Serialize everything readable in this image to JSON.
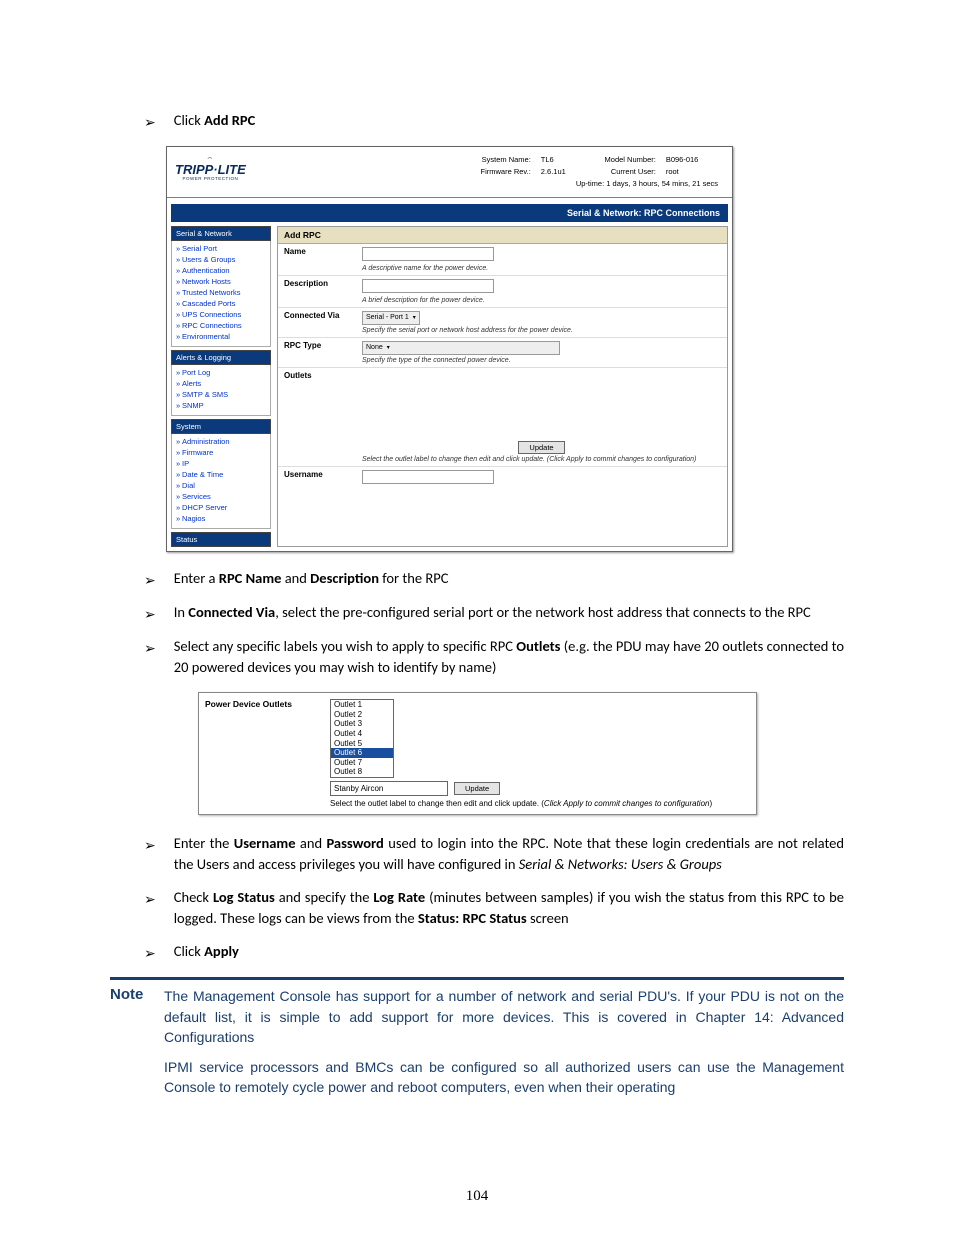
{
  "instructions_top": {
    "i1_a": "Click ",
    "i1_b": "Add RPC"
  },
  "shot1": {
    "logo": "TRIPP·LITE",
    "logo_sub": "POWER PROTECTION",
    "sys": {
      "name_lbl": "System Name:",
      "name_val": "TL6",
      "fw_lbl": "Firmware Rev.:",
      "fw_val": "2.6.1u1",
      "model_lbl": "Model Number:",
      "model_val": "B096-016",
      "user_lbl": "Current User:",
      "user_val": "root",
      "uptime_lbl": "Up-time:",
      "uptime_val": "1 days, 3 hours, 54 mins, 21 secs"
    },
    "title_bar": "Serial & Network: RPC Connections",
    "sidebar": {
      "g1_head": "Serial & Network",
      "g1": [
        "Serial Port",
        "Users & Groups",
        "Authentication",
        "Network Hosts",
        "Trusted Networks",
        "Cascaded Ports",
        "UPS Connections",
        "RPC Connections",
        "Environmental"
      ],
      "g2_head": "Alerts & Logging",
      "g2": [
        "Port Log",
        "Alerts",
        "SMTP & SMS",
        "SNMP"
      ],
      "g3_head": "System",
      "g3": [
        "Administration",
        "Firmware",
        "IP",
        "Date & Time",
        "Dial",
        "Services",
        "DHCP Server",
        "Nagios"
      ],
      "g4_head": "Status"
    },
    "panel": {
      "head": "Add RPC",
      "name_lbl": "Name",
      "name_hint": "A descriptive name for the power device.",
      "desc_lbl": "Description",
      "desc_hint": "A brief description for the power device.",
      "conn_lbl": "Connected Via",
      "conn_val": "Serial - Port 1",
      "conn_hint": "Specify the serial port or network host address for the power device.",
      "type_lbl": "RPC Type",
      "type_val": "None",
      "type_hint": "Specify the type of the connected power device.",
      "outlets_lbl": "Outlets",
      "update_btn": "Update",
      "outlets_hint_a": "Select the outlet label to change then edit and click update. ",
      "outlets_hint_b": "(Click Apply to commit changes to configuration)",
      "user_lbl": "Username"
    }
  },
  "instructions_mid": {
    "i2_a": "Enter a ",
    "i2_b": "RPC Name",
    "i2_c": " and ",
    "i2_d": "Description",
    "i2_e": " for the RPC",
    "i3_a": "In ",
    "i3_b": "Connected Via",
    "i3_c": ", select the pre-configured serial port or the network host address that connects to the RPC",
    "i4_a": "Select any specific labels you wish to apply to specific RPC ",
    "i4_b": "Outlets",
    "i4_c": " (e.g. the PDU may have 20 outlets connected to 20 powered devices you may wish to identify by name)"
  },
  "shot2": {
    "label": "Power Device Outlets",
    "items": [
      "Outlet 1",
      "Outlet 2",
      "Outlet 3",
      "Outlet 4",
      "Outlet 5",
      "Outlet 6",
      "Outlet 7",
      "Outlet 8"
    ],
    "selected_index": 5,
    "input_value": "Stanby Aircon",
    "btn": "Update",
    "hint_a": "Select the outlet label to change then edit and click update. (",
    "hint_b": "Click Apply to commit changes to configuration",
    "hint_c": ")"
  },
  "instructions_bot": {
    "i5_a": "Enter the ",
    "i5_b": "Username",
    "i5_c": " and ",
    "i5_d": "Password",
    "i5_e": " used to login into the RPC. Note that these login credentials are not related the Users and access privileges you will have configured in ",
    "i5_f": "Serial & Networks: Users & Groups",
    "i6_a": "Check ",
    "i6_b": "Log Status",
    "i6_c": " and specify the ",
    "i6_d": "Log Rate",
    "i6_e": " (minutes between samples) if you wish the status from this RPC to be logged. These logs can be views from the ",
    "i6_f": "Status: RPC Status",
    "i6_g": " screen",
    "i7_a": "Click ",
    "i7_b": "Apply"
  },
  "note": {
    "label": "Note",
    "p1": "The Management Console has support for a number of network and serial PDU's. If your PDU is not on the default list, it is simple to add support for more devices. This is covered in Chapter 14: Advanced Configurations",
    "p2": "IPMI service processors and BMCs can be configured so all authorized users can use the Management Console to remotely cycle power and reboot computers, even when their operating"
  },
  "page_number": "104"
}
